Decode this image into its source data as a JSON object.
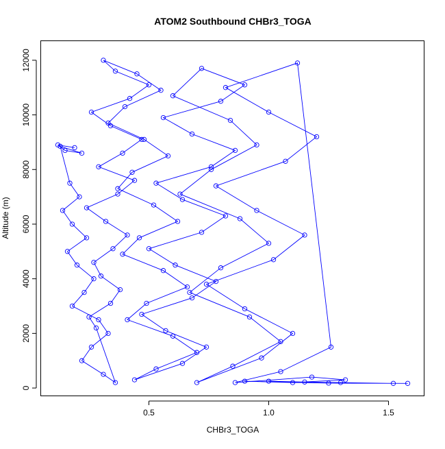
{
  "chart_data": {
    "type": "scatter",
    "title": "ATOM2 Southbound CHBr3_TOGA",
    "xlabel": "CHBr3_TOGA",
    "ylabel": "Altitude (m)",
    "xlim": [
      0.05,
      1.65
    ],
    "ylim": [
      -300,
      12700
    ],
    "x_ticks": [
      {
        "value": 0.5,
        "label": "0.5"
      },
      {
        "value": 1.0,
        "label": "1.0"
      },
      {
        "value": 1.5,
        "label": "1.5"
      }
    ],
    "y_ticks": [
      {
        "value": 0,
        "label": "0"
      },
      {
        "value": 2000,
        "label": "2000"
      },
      {
        "value": 4000,
        "label": "4000"
      },
      {
        "value": 6000,
        "label": "6000"
      },
      {
        "value": 8000,
        "label": "8000"
      },
      {
        "value": 10000,
        "label": "10000"
      },
      {
        "value": 12000,
        "label": "12000"
      }
    ],
    "grid": false,
    "legend": "none",
    "marker": "open-circle",
    "line": true,
    "series_color": "#0000ff",
    "series": [
      {
        "x": [
          0.19,
          0.12,
          0.15,
          0.22,
          0.13,
          0.17,
          0.21,
          0.14,
          0.18,
          0.24,
          0.16,
          0.2,
          0.27,
          0.23,
          0.18,
          0.29,
          0.33,
          0.26,
          0.22,
          0.31,
          0.36,
          0.28,
          0.25,
          0.34,
          0.38,
          0.3,
          0.27,
          0.35,
          0.41,
          0.32,
          0.24,
          0.37,
          0.44,
          0.29,
          0.39,
          0.47,
          0.34,
          0.26,
          0.42,
          0.5,
          0.36,
          0.31,
          0.45,
          0.55,
          0.4,
          0.33,
          0.48,
          0.58,
          0.43,
          0.37,
          0.52,
          0.62,
          0.46,
          0.39,
          0.56,
          0.66,
          0.49,
          0.41,
          0.6,
          0.7,
          0.53,
          0.44,
          0.64,
          0.74,
          0.57,
          0.47,
          0.68,
          0.78,
          0.61,
          0.5,
          0.72,
          0.82,
          0.64,
          0.53,
          0.76,
          0.86,
          0.68,
          0.56,
          0.8,
          0.9,
          0.72,
          0.6,
          0.84,
          0.95,
          0.76,
          0.63,
          0.88,
          1.0,
          0.8,
          0.67,
          0.92,
          1.05,
          0.85,
          0.7,
          0.97,
          1.1,
          0.9,
          0.74,
          1.02,
          1.15,
          0.95,
          0.78,
          1.07,
          1.2,
          1.0,
          0.82,
          1.12,
          1.26,
          1.05,
          0.86,
          1.18,
          1.32,
          1.1,
          0.9,
          1.25,
          1.58,
          1.52,
          1.3,
          1.15,
          1.0
        ],
        "y": [
          8800,
          8900,
          8700,
          8600,
          8850,
          7500,
          7000,
          6500,
          6000,
          5500,
          5000,
          4500,
          4000,
          3500,
          3000,
          2500,
          2000,
          1500,
          1000,
          500,
          200,
          2200,
          2600,
          3100,
          3600,
          4100,
          4600,
          5100,
          5600,
          6100,
          6600,
          7100,
          7600,
          8100,
          8600,
          9100,
          9600,
          10100,
          10600,
          11100,
          11600,
          12000,
          11500,
          10900,
          10300,
          9700,
          9100,
          8500,
          7900,
          7300,
          6700,
          6100,
          5500,
          4900,
          4300,
          3700,
          3100,
          2500,
          1900,
          1300,
          700,
          300,
          900,
          1500,
          2100,
          2700,
          3300,
          3900,
          4500,
          5100,
          5700,
          6300,
          6900,
          7500,
          8100,
          8700,
          9300,
          9900,
          10500,
          11100,
          11700,
          10700,
          9800,
          8900,
          8000,
          7100,
          6200,
          5300,
          4400,
          3500,
          2600,
          1700,
          800,
          200,
          1100,
          2000,
          2900,
          3800,
          4700,
          5600,
          6500,
          7400,
          8300,
          9200,
          10100,
          11000,
          11900,
          1500,
          600,
          200,
          400,
          300,
          200,
          250,
          180,
          170,
          170,
          200,
          220,
          250
        ]
      }
    ]
  }
}
